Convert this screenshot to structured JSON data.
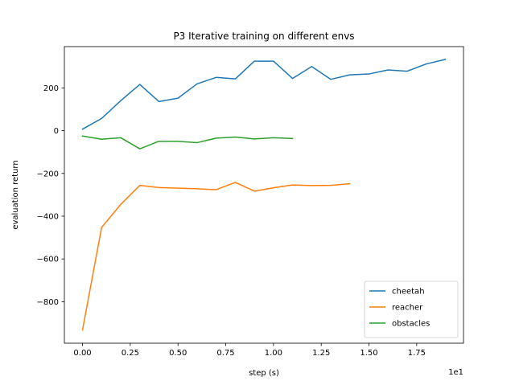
{
  "chart_data": {
    "type": "line",
    "title": "P3 Iterative training on different envs",
    "xlabel": "step  (s)",
    "ylabel": "evaluation return",
    "x_offset_text": "1e1",
    "xlim": [
      -0.095,
      1.995
    ],
    "ylim": [
      -994,
      393
    ],
    "xticks": [
      "0.00",
      "0.25",
      "0.50",
      "0.75",
      "1.00",
      "1.25",
      "1.50",
      "1.75"
    ],
    "xtick_values": [
      0.0,
      0.25,
      0.5,
      0.75,
      1.0,
      1.25,
      1.5,
      1.75
    ],
    "yticks": [
      "−800",
      "−600",
      "−400",
      "−200",
      "0",
      "200"
    ],
    "ytick_values": [
      -800,
      -600,
      -400,
      -200,
      0,
      200
    ],
    "grid": false,
    "legend_position": "lower-right",
    "series": [
      {
        "name": "cheetah",
        "color": "#1f77b4",
        "x": [
          0.0,
          0.1,
          0.2,
          0.3,
          0.4,
          0.5,
          0.6,
          0.7,
          0.8,
          0.9,
          1.0,
          1.1,
          1.2,
          1.3,
          1.4,
          1.5,
          1.6,
          1.7,
          1.8,
          1.9
        ],
        "y": [
          7,
          57,
          140,
          216,
          136,
          152,
          219,
          249,
          242,
          325,
          325,
          244,
          300,
          240,
          261,
          265,
          284,
          278,
          312,
          333
        ]
      },
      {
        "name": "reacher",
        "color": "#ff7f0e",
        "x": [
          0.0,
          0.1,
          0.2,
          0.3,
          0.4,
          0.5,
          0.6,
          0.7,
          0.8,
          0.9,
          1.0,
          1.1,
          1.2,
          1.3,
          1.4
        ],
        "y": [
          -932,
          -453,
          -345,
          -256,
          -266,
          -269,
          -272,
          -276,
          -242,
          -283,
          -267,
          -254,
          -257,
          -256,
          -248
        ]
      },
      {
        "name": "obstacles",
        "color": "#2ca02c",
        "x": [
          0.0,
          0.1,
          0.2,
          0.3,
          0.4,
          0.5,
          0.6,
          0.7,
          0.8,
          0.9,
          1.0,
          1.1
        ],
        "y": [
          -25,
          -40,
          -33,
          -85,
          -50,
          -50,
          -56,
          -35,
          -30,
          -39,
          -33,
          -37
        ]
      }
    ]
  }
}
